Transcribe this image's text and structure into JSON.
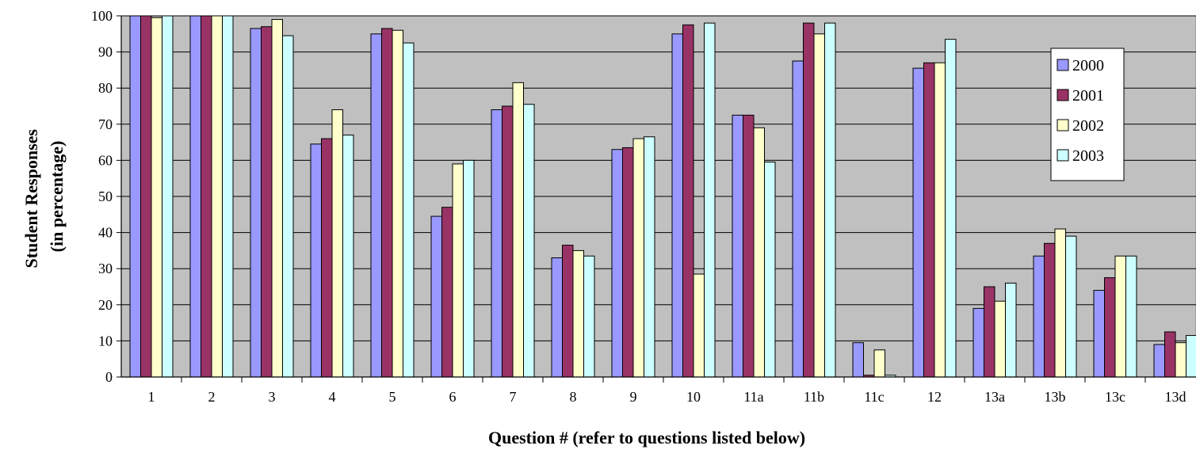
{
  "chart_data": {
    "type": "bar",
    "title": "",
    "xlabel": "Question # (refer to questions listed below)",
    "ylabel_line1": "Student Responses",
    "ylabel_line2": "(in percentage)",
    "ylim": [
      0,
      100
    ],
    "yticks": [
      0,
      10,
      20,
      30,
      40,
      50,
      60,
      70,
      80,
      90,
      100
    ],
    "grid": true,
    "legend_position": "right",
    "categories": [
      "1",
      "2",
      "3",
      "4",
      "5",
      "6",
      "7",
      "8",
      "9",
      "10",
      "11a",
      "11b",
      "11c",
      "12",
      "13a",
      "13b",
      "13c",
      "13d"
    ],
    "series": [
      {
        "name": "2000",
        "color": "#9999ff",
        "values": [
          100,
          100,
          96.5,
          64.5,
          95,
          44.5,
          74,
          33,
          63,
          95,
          72.5,
          87.5,
          9.5,
          85.5,
          19,
          33.5,
          24,
          9
        ]
      },
      {
        "name": "2001",
        "color": "#993366",
        "values": [
          100,
          100,
          97,
          66,
          96.5,
          47,
          75,
          36.5,
          63.5,
          97.5,
          72.5,
          98,
          0.5,
          87,
          25,
          37,
          27.5,
          12.5
        ]
      },
      {
        "name": "2002",
        "color": "#ffffcc",
        "values": [
          99.5,
          100,
          99,
          74,
          96,
          59,
          81.5,
          35,
          66,
          28.5,
          69,
          95,
          7.5,
          87,
          21,
          41,
          33.5,
          9.5
        ]
      },
      {
        "name": "2003",
        "color": "#ccffff",
        "values": [
          100,
          100,
          94.5,
          67,
          92.5,
          60,
          75.5,
          33.5,
          66.5,
          98,
          59.5,
          98,
          0.5,
          93.5,
          26,
          39,
          33.5,
          11.5
        ]
      }
    ],
    "plot_background": "#c0c0c0"
  }
}
